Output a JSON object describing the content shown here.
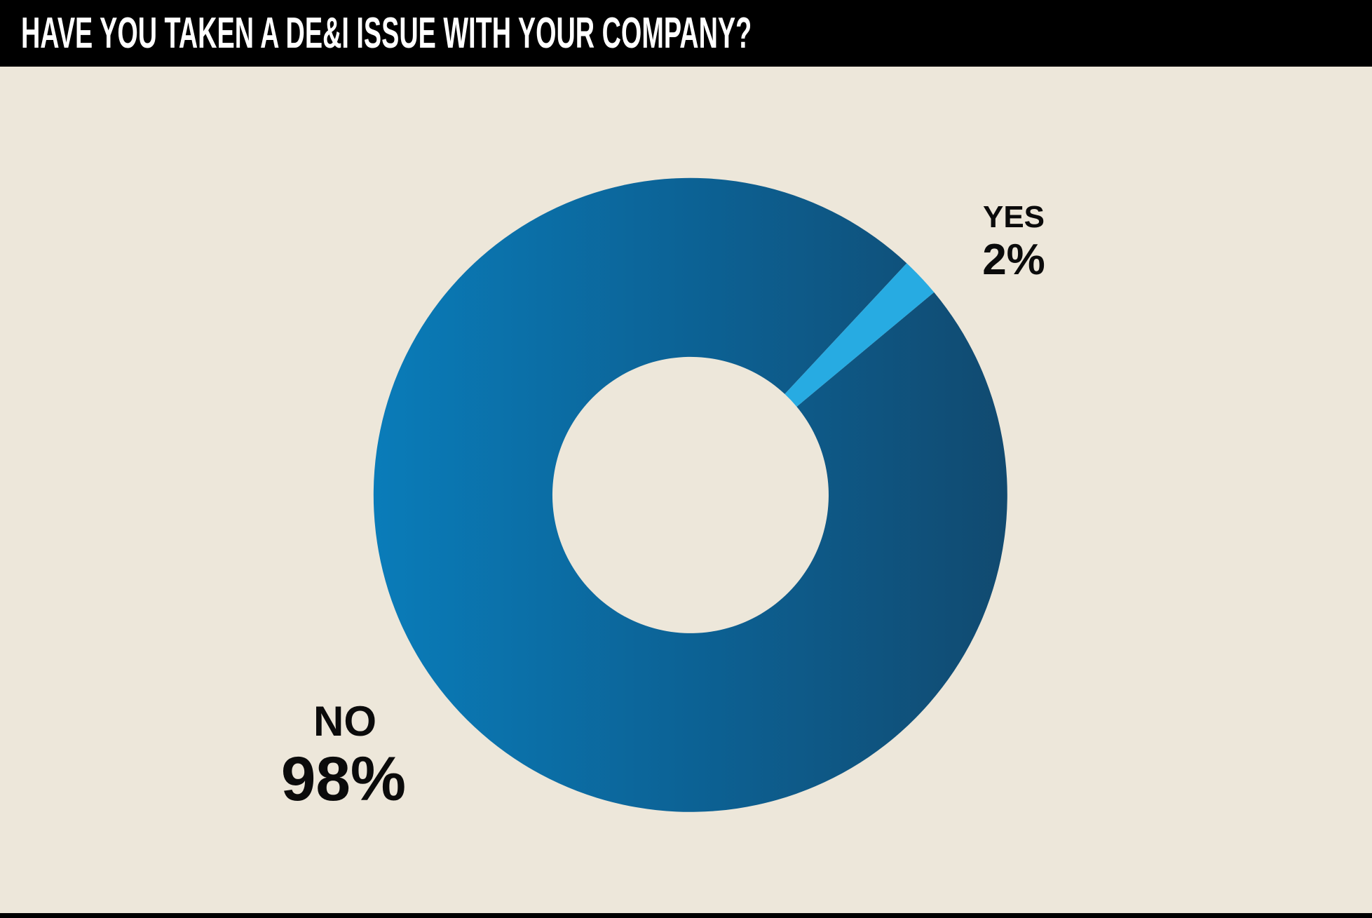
{
  "header": {
    "title": "HAVE YOU TAKEN A DE&I ISSUE WITH YOUR COMPANY?"
  },
  "colors": {
    "background": "#EDE7DA",
    "header_bg": "#000000",
    "title_text": "#FFFFFF",
    "label_text": "#0B0B0B",
    "footer_bar": "#000000"
  },
  "chart_data": {
    "type": "pie",
    "donut": true,
    "inner_radius_ratio": 0.44,
    "title": "HAVE YOU TAKEN A DE&I ISSUE WITH YOUR COMPANY?",
    "categories": [
      "YES",
      "NO"
    ],
    "values": [
      2,
      98
    ],
    "value_labels": [
      "2%",
      "98%"
    ],
    "slice_colors": {
      "yes": "#27ABE2",
      "no_gradient": [
        "#0A7CB9",
        "#0C6295",
        "#114A70"
      ]
    },
    "yes_slice_center_angle_deg": 46.6,
    "legend_position": "labels-outside",
    "grid": false
  }
}
